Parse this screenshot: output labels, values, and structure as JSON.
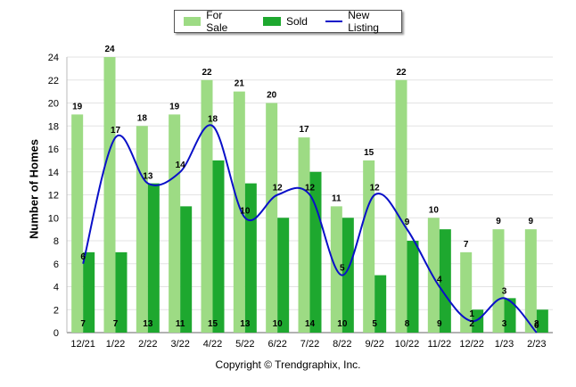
{
  "legend": {
    "for_sale": "For Sale",
    "sold": "Sold",
    "new_listing": "New Listing"
  },
  "footer": "Copyright © Trendgraphix, Inc.",
  "colors": {
    "for_sale": "#9ddb84",
    "sold": "#1ea82f",
    "new_listing": "#0a10c8",
    "grid": "#e3e3e3"
  },
  "chart_data": {
    "type": "bar",
    "ylabel": "Number of Homes",
    "ylim": [
      0,
      24
    ],
    "yticks": [
      0,
      2,
      4,
      6,
      8,
      10,
      12,
      14,
      16,
      18,
      20,
      22,
      24
    ],
    "grid": true,
    "legend_position": "top-center",
    "categories": [
      "12/21",
      "1/22",
      "2/22",
      "3/22",
      "4/22",
      "5/22",
      "6/22",
      "7/22",
      "8/22",
      "9/22",
      "10/22",
      "11/22",
      "12/22",
      "1/23",
      "2/23"
    ],
    "series": [
      {
        "name": "For Sale",
        "type": "bar",
        "values": [
          19,
          24,
          18,
          19,
          22,
          21,
          20,
          17,
          11,
          15,
          22,
          10,
          7,
          9,
          9
        ]
      },
      {
        "name": "Sold",
        "type": "bar",
        "values": [
          7,
          7,
          13,
          11,
          15,
          13,
          10,
          14,
          10,
          5,
          8,
          9,
          2,
          3,
          2
        ]
      },
      {
        "name": "New Listing",
        "type": "line",
        "values": [
          6,
          17,
          13,
          14,
          18,
          10,
          12,
          12,
          5,
          12,
          9,
          4,
          1,
          3,
          0
        ]
      }
    ]
  }
}
